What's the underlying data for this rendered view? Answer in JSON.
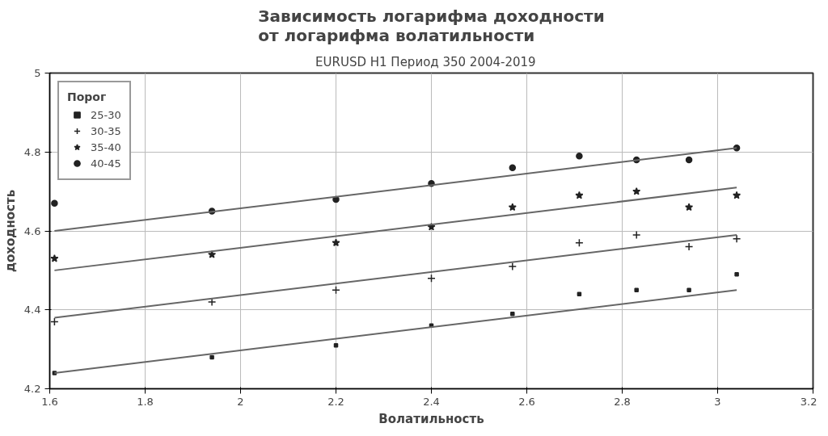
{
  "chart_data": {
    "type": "scatter",
    "title": "Зависимость логарифма доходности\nот логарифма волатильности",
    "subtitle": "EURUSD H1 Период 350    2004-2019",
    "xlabel": "Волатильность",
    "ylabel": "доходность",
    "legend_title": "Порог",
    "xlim": [
      1.6,
      3.2
    ],
    "xticks": [
      1.6,
      1.8,
      2,
      2.2,
      2.4,
      2.6,
      2.8,
      3,
      3.2
    ],
    "ylim": [
      4.2,
      5
    ],
    "yticks": [
      4.2,
      4.4,
      4.6,
      4.8,
      5
    ],
    "grid": true,
    "legend": "top left",
    "series": [
      {
        "name": "25-30",
        "marker": "square",
        "color": "#222222",
        "x": [
          1.61,
          1.94,
          2.2,
          2.4,
          2.57,
          2.71,
          2.83,
          2.94,
          3.04
        ],
        "values": [
          4.24,
          4.28,
          4.31,
          4.36,
          4.39,
          4.44,
          4.45,
          4.45,
          4.49
        ]
      },
      {
        "name": "30-35",
        "marker": "cross",
        "color": "#222222",
        "x": [
          1.61,
          1.94,
          2.2,
          2.4,
          2.57,
          2.71,
          2.83,
          2.94,
          3.04
        ],
        "values": [
          4.37,
          4.42,
          4.45,
          4.48,
          4.51,
          4.57,
          4.59,
          4.56,
          4.58
        ]
      },
      {
        "name": "35-40",
        "marker": "star",
        "color": "#222222",
        "x": [
          1.61,
          1.94,
          2.2,
          2.4,
          2.57,
          2.71,
          2.83,
          2.94,
          3.04
        ],
        "values": [
          4.53,
          4.54,
          4.57,
          4.61,
          4.66,
          4.69,
          4.7,
          4.66,
          4.69
        ]
      },
      {
        "name": "40-45",
        "marker": "circle",
        "color": "#222222",
        "x": [
          1.61,
          1.94,
          2.2,
          2.4,
          2.57,
          2.71,
          2.83,
          2.94,
          3.04
        ],
        "values": [
          4.67,
          4.65,
          4.68,
          4.72,
          4.76,
          4.79,
          4.78,
          4.78,
          4.81
        ]
      },
      {
        "type": "line",
        "color": "#666666",
        "x": [
          1.61,
          3.04
        ],
        "values": [
          4.24,
          4.45
        ]
      },
      {
        "type": "line",
        "color": "#666666",
        "x": [
          1.61,
          3.04
        ],
        "values": [
          4.38,
          4.59
        ]
      },
      {
        "type": "line",
        "color": "#666666",
        "x": [
          1.61,
          3.04
        ],
        "values": [
          4.5,
          4.71
        ]
      },
      {
        "type": "line",
        "color": "#666666",
        "x": [
          1.61,
          3.04
        ],
        "values": [
          4.6,
          4.81
        ]
      }
    ]
  }
}
